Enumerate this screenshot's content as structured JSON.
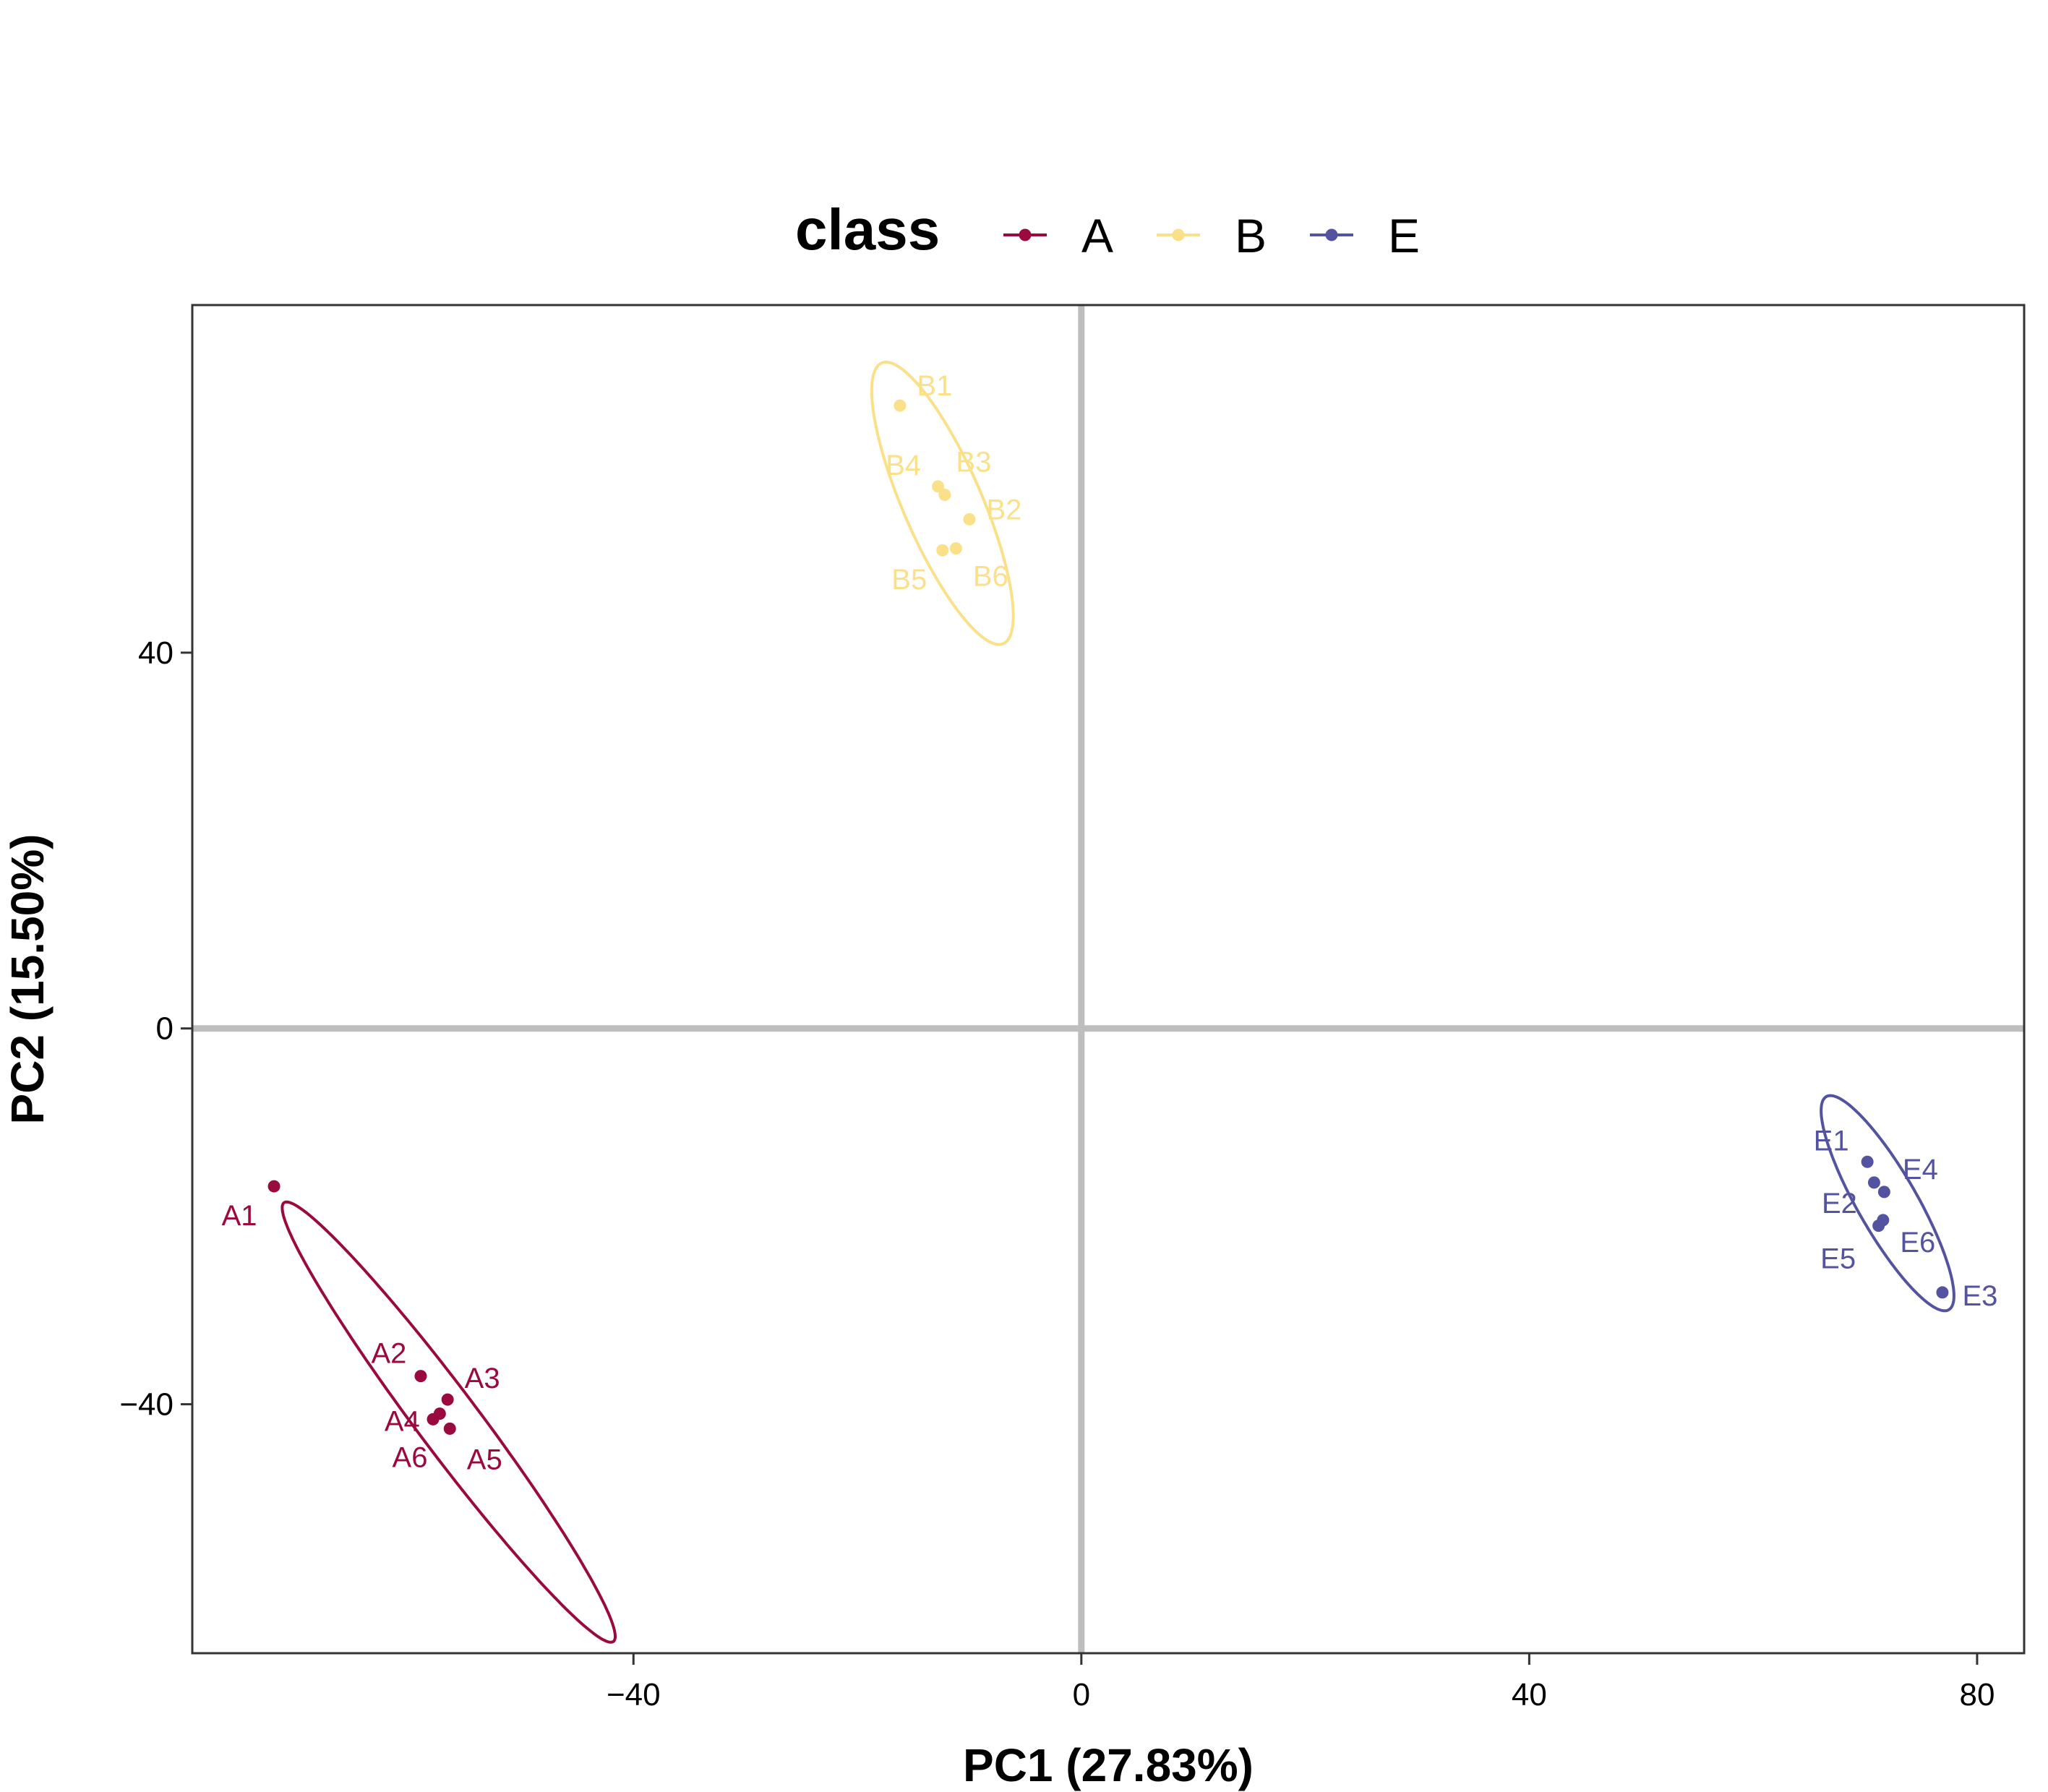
{
  "chart_data": {
    "type": "scatter",
    "title": "",
    "xlabel": "PC1 (27.83%)",
    "ylabel": "PC2 (15.50%)",
    "xlim": [
      -79.4,
      84.2
    ],
    "ylim": [
      -66.5,
      77.0
    ],
    "xticks": [
      -40,
      0,
      40,
      80
    ],
    "yticks": [
      -40,
      0,
      40
    ],
    "zero_lines": true,
    "grid": false,
    "legend": {
      "title": "class",
      "position": "top"
    },
    "series": [
      {
        "name": "A",
        "color": "#9B0A3F",
        "points": [
          {
            "label": "A1",
            "x": -72.1,
            "y": -16.8
          },
          {
            "label": "A2",
            "x": -59.0,
            "y": -37.0
          },
          {
            "label": "A3",
            "x": -56.6,
            "y": -39.5
          },
          {
            "label": "A4",
            "x": -57.3,
            "y": -41.0
          },
          {
            "label": "A5",
            "x": -56.4,
            "y": -42.6
          },
          {
            "label": "A6",
            "x": -57.9,
            "y": -41.6
          }
        ],
        "ellipse": {
          "cx": -56.5,
          "cy": -41.9,
          "a": 27.6,
          "b": 2.9,
          "angle_deg": -57.9
        }
      },
      {
        "name": "B",
        "color": "#FBE08A",
        "points": [
          {
            "label": "B1",
            "x": -16.2,
            "y": 66.3
          },
          {
            "label": "B4",
            "x": -12.8,
            "y": 57.7
          },
          {
            "label": "B3",
            "x": -12.2,
            "y": 56.8
          },
          {
            "label": "B2",
            "x": -10.0,
            "y": 54.2
          },
          {
            "label": "B5",
            "x": -12.4,
            "y": 50.9
          },
          {
            "label": "B6",
            "x": -11.2,
            "y": 51.1
          }
        ],
        "ellipse": {
          "cx": -12.4,
          "cy": 55.9,
          "a": 15.9,
          "b": 3.6,
          "angle_deg": -70.4
        }
      },
      {
        "name": "E",
        "color": "#5453A0",
        "points": [
          {
            "label": "E1",
            "x": 70.2,
            "y": -14.2
          },
          {
            "label": "E4",
            "x": 71.7,
            "y": -17.4
          },
          {
            "label": "E2",
            "x": 70.8,
            "y": -16.4
          },
          {
            "label": "E6",
            "x": 71.6,
            "y": -20.4
          },
          {
            "label": "E5",
            "x": 71.2,
            "y": -21.0
          },
          {
            "label": "E3",
            "x": 76.9,
            "y": -28.1
          }
        ],
        "ellipse": {
          "cx": 72.0,
          "cy": -18.6,
          "a": 12.6,
          "b": 2.75,
          "angle_deg": -64.7
        }
      }
    ]
  }
}
